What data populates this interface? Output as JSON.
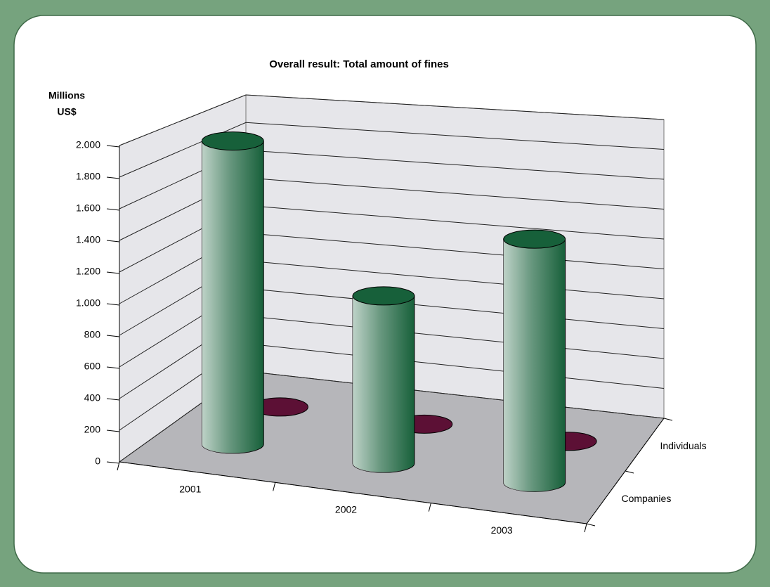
{
  "chart_data": {
    "type": "bar3d",
    "title": "Overall result: Total amount of fines",
    "ylabel": [
      "Millions",
      "US$"
    ],
    "categories": [
      "2001",
      "2002",
      "2003"
    ],
    "series": [
      {
        "name": "Companies",
        "color": "#17603a",
        "values": [
          1980,
          1080,
          1550
        ]
      },
      {
        "name": "Individuals",
        "color": "#5c1035",
        "values": [
          0,
          0,
          0
        ]
      }
    ],
    "ylim": [
      0,
      2000
    ],
    "yticks": [
      0,
      200,
      400,
      600,
      800,
      {
        "value": 1000,
        "label": "1.000"
      },
      {
        "value": 1200,
        "label": "1.200"
      },
      {
        "value": 1400,
        "label": "1.400"
      },
      {
        "value": 1600,
        "label": "1.600"
      },
      {
        "value": 1800,
        "label": "1.800"
      },
      {
        "value": 2000,
        "label": "2.000"
      }
    ],
    "grid": true
  }
}
